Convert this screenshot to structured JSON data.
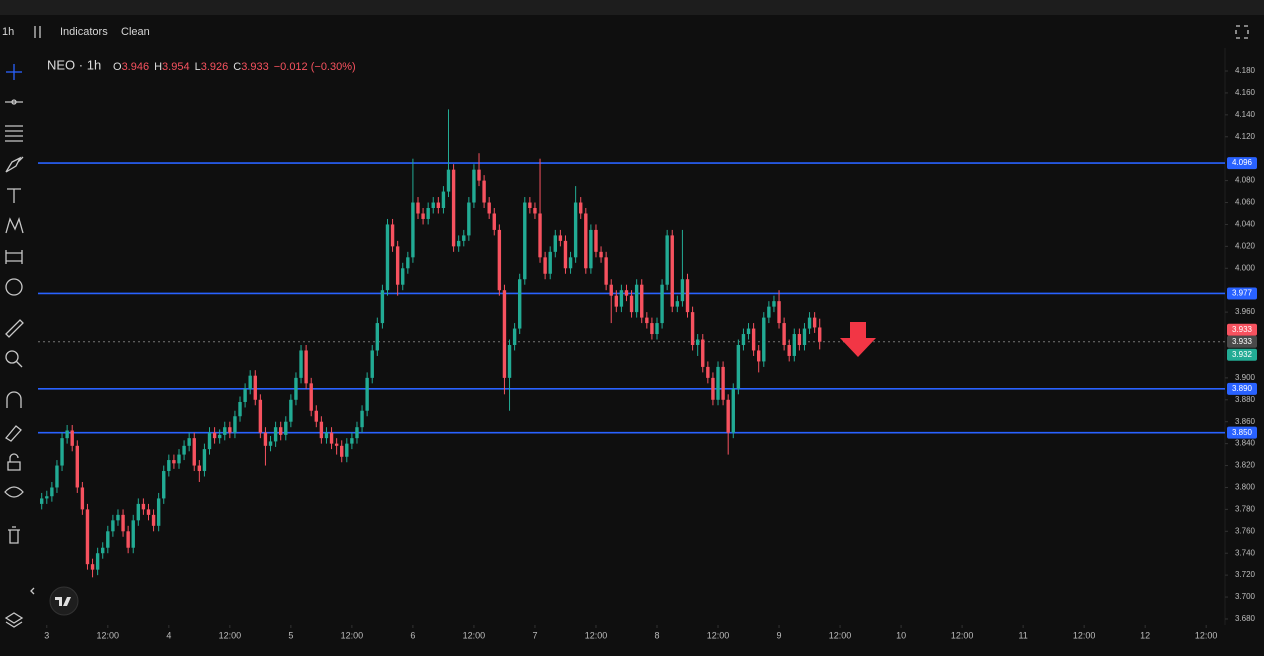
{
  "toolbar": {
    "interval": "1h",
    "indicators": "Indicators",
    "clean": "Clean"
  },
  "chart_data": {
    "type": "candlestick",
    "symbol": "NEO · 1h",
    "ohlc_legend": {
      "open_label": "O",
      "open": "3.946",
      "high_label": "H",
      "high": "3.954",
      "low_label": "L",
      "low": "3.926",
      "close_label": "C",
      "close": "3.933",
      "change": "−0.012 (−0.30%)"
    },
    "x": [
      -1,
      0,
      1,
      2,
      3,
      4,
      5,
      6,
      7,
      8,
      9,
      10,
      11,
      12,
      13,
      14,
      15,
      16,
      17,
      18,
      19,
      20,
      21,
      22,
      23,
      24,
      25,
      26,
      27,
      28,
      29,
      30,
      31,
      32,
      33,
      34,
      35,
      36,
      37,
      38,
      39,
      40,
      41,
      42,
      43,
      44,
      45,
      46,
      47,
      48,
      49,
      50,
      51,
      52,
      53,
      54,
      55,
      56,
      57,
      58,
      59,
      60,
      61,
      62,
      63,
      64,
      65,
      66,
      67,
      68,
      69,
      70,
      71,
      72,
      73,
      74,
      75,
      76,
      77,
      78,
      79,
      80,
      81,
      82,
      83,
      84,
      85,
      86,
      87,
      88,
      89,
      90,
      91,
      92,
      93,
      94,
      95,
      96,
      97,
      98,
      99,
      100,
      101,
      102,
      103,
      104,
      105,
      106,
      107,
      108,
      109,
      110,
      111,
      112,
      113,
      114,
      115,
      116,
      117,
      118,
      119,
      120,
      121,
      122,
      123,
      124,
      125,
      126,
      127,
      128,
      129,
      130,
      131,
      132,
      133,
      134,
      135,
      136,
      137,
      138,
      139,
      140,
      141,
      142,
      143,
      144,
      145,
      146,
      147,
      148,
      149,
      150,
      151,
      152
    ],
    "open": [
      3.785,
      3.79,
      3.792,
      3.8,
      3.82,
      3.845,
      3.852,
      3.838,
      3.8,
      3.78,
      3.73,
      3.725,
      3.74,
      3.745,
      3.76,
      3.77,
      3.775,
      3.76,
      3.745,
      3.77,
      3.785,
      3.78,
      3.775,
      3.765,
      3.79,
      3.815,
      3.825,
      3.822,
      3.83,
      3.838,
      3.845,
      3.82,
      3.815,
      3.835,
      3.85,
      3.845,
      3.848,
      3.855,
      3.85,
      3.865,
      3.878,
      3.89,
      3.902,
      3.88,
      3.85,
      3.838,
      3.842,
      3.855,
      3.848,
      3.86,
      3.88,
      3.9,
      3.925,
      3.895,
      3.87,
      3.86,
      3.845,
      3.85,
      3.84,
      3.838,
      3.828,
      3.84,
      3.845,
      3.855,
      3.87,
      3.9,
      3.925,
      3.95,
      3.98,
      4.04,
      4.02,
      3.985,
      4.0,
      4.01,
      4.06,
      4.05,
      4.045,
      4.055,
      4.06,
      4.055,
      4.07,
      4.09,
      4.02,
      4.025,
      4.03,
      4.06,
      4.09,
      4.08,
      4.06,
      4.05,
      4.035,
      3.98,
      3.9,
      3.93,
      3.945,
      3.99,
      4.06,
      4.055,
      4.05,
      4.01,
      3.995,
      4.015,
      4.03,
      4.025,
      4.0,
      4.01,
      4.06,
      4.05,
      4.0,
      4.035,
      4.015,
      4.01,
      3.985,
      3.975,
      3.965,
      3.98,
      3.975,
      3.96,
      3.985,
      3.955,
      3.95,
      3.94,
      3.95,
      3.985,
      4.03,
      3.965,
      3.97,
      3.99,
      3.96,
      3.93,
      3.935,
      3.91,
      3.9,
      3.88,
      3.91,
      3.88,
      3.85,
      3.89,
      3.93,
      3.94,
      3.945,
      3.925,
      3.915,
      3.955,
      3.965,
      3.97,
      3.95,
      3.93,
      3.92,
      3.94,
      3.93,
      3.945,
      3.955,
      3.946
    ],
    "high": [
      3.795,
      3.797,
      3.805,
      3.825,
      3.85,
      3.857,
      3.857,
      3.843,
      3.805,
      3.785,
      3.735,
      3.745,
      3.75,
      3.765,
      3.775,
      3.78,
      3.78,
      3.765,
      3.775,
      3.79,
      3.79,
      3.785,
      3.78,
      3.795,
      3.82,
      3.83,
      3.83,
      3.835,
      3.843,
      3.85,
      3.85,
      3.825,
      3.84,
      3.855,
      3.855,
      3.853,
      3.86,
      3.86,
      3.87,
      3.883,
      3.895,
      3.907,
      3.907,
      3.885,
      3.855,
      3.847,
      3.86,
      3.86,
      3.865,
      3.885,
      3.905,
      3.93,
      3.93,
      3.9,
      3.875,
      3.865,
      3.855,
      3.855,
      3.845,
      3.843,
      3.845,
      3.85,
      3.86,
      3.875,
      3.905,
      3.93,
      3.955,
      3.985,
      4.045,
      4.045,
      4.025,
      4.005,
      4.015,
      4.1,
      4.065,
      4.055,
      4.06,
      4.065,
      4.065,
      4.075,
      4.145,
      4.095,
      4.03,
      4.035,
      4.065,
      4.095,
      4.105,
      4.085,
      4.065,
      4.055,
      4.04,
      3.985,
      3.935,
      3.95,
      3.995,
      4.065,
      4.065,
      4.06,
      4.1,
      4.015,
      4.02,
      4.035,
      4.035,
      4.03,
      4.015,
      4.075,
      4.065,
      4.055,
      4.04,
      4.04,
      4.02,
      4.015,
      3.99,
      3.98,
      3.985,
      3.985,
      3.98,
      3.99,
      3.99,
      3.96,
      3.955,
      3.955,
      3.99,
      4.035,
      4.035,
      3.975,
      4.035,
      3.995,
      3.965,
      3.94,
      3.94,
      3.915,
      3.905,
      3.915,
      3.915,
      3.885,
      3.895,
      3.935,
      3.945,
      3.95,
      3.95,
      3.93,
      3.96,
      3.97,
      3.975,
      3.98,
      3.955,
      3.935,
      3.945,
      3.945,
      3.95,
      3.96,
      3.96,
      3.954
    ],
    "low": [
      3.78,
      3.785,
      3.787,
      3.795,
      3.815,
      3.84,
      3.833,
      3.795,
      3.775,
      3.725,
      3.718,
      3.72,
      3.735,
      3.74,
      3.755,
      3.765,
      3.755,
      3.74,
      3.74,
      3.765,
      3.775,
      3.77,
      3.76,
      3.76,
      3.785,
      3.81,
      3.817,
      3.817,
      3.825,
      3.833,
      3.815,
      3.805,
      3.81,
      3.83,
      3.84,
      3.84,
      3.843,
      3.845,
      3.845,
      3.86,
      3.873,
      3.885,
      3.875,
      3.845,
      3.82,
      3.833,
      3.837,
      3.843,
      3.843,
      3.855,
      3.875,
      3.895,
      3.89,
      3.865,
      3.855,
      3.84,
      3.84,
      3.835,
      3.83,
      3.823,
      3.823,
      3.835,
      3.84,
      3.85,
      3.865,
      3.895,
      3.92,
      3.945,
      3.975,
      4.015,
      3.975,
      3.98,
      3.995,
      4.005,
      4.045,
      4.04,
      4.04,
      4.05,
      4.05,
      4.05,
      4.065,
      4.015,
      4.015,
      4.02,
      4.025,
      4.055,
      4.075,
      4.055,
      4.045,
      4.03,
      3.975,
      3.885,
      3.87,
      3.925,
      3.94,
      3.985,
      4.05,
      4.045,
      4.005,
      3.99,
      3.99,
      4.01,
      4.02,
      3.995,
      3.995,
      4.005,
      4.045,
      3.995,
      3.995,
      4.01,
      4.005,
      3.98,
      3.95,
      3.96,
      3.96,
      3.97,
      3.955,
      3.955,
      3.95,
      3.945,
      3.935,
      3.935,
      3.945,
      3.98,
      3.96,
      3.96,
      3.965,
      3.955,
      3.925,
      3.92,
      3.905,
      3.895,
      3.875,
      3.875,
      3.875,
      3.83,
      3.845,
      3.885,
      3.925,
      3.935,
      3.92,
      3.905,
      3.91,
      3.95,
      3.96,
      3.945,
      3.925,
      3.915,
      3.915,
      3.925,
      3.925,
      3.94,
      3.941,
      3.926
    ],
    "close": [
      3.79,
      3.792,
      3.8,
      3.82,
      3.845,
      3.852,
      3.838,
      3.8,
      3.78,
      3.73,
      3.725,
      3.74,
      3.745,
      3.76,
      3.77,
      3.775,
      3.76,
      3.745,
      3.77,
      3.785,
      3.78,
      3.775,
      3.765,
      3.79,
      3.815,
      3.825,
      3.822,
      3.83,
      3.838,
      3.845,
      3.82,
      3.815,
      3.835,
      3.85,
      3.845,
      3.848,
      3.855,
      3.85,
      3.865,
      3.878,
      3.89,
      3.902,
      3.88,
      3.85,
      3.838,
      3.842,
      3.855,
      3.848,
      3.86,
      3.88,
      3.9,
      3.925,
      3.895,
      3.87,
      3.86,
      3.845,
      3.85,
      3.84,
      3.838,
      3.828,
      3.84,
      3.845,
      3.855,
      3.87,
      3.9,
      3.925,
      3.95,
      3.98,
      4.04,
      4.02,
      3.985,
      4.0,
      4.01,
      4.06,
      4.05,
      4.045,
      4.055,
      4.06,
      4.055,
      4.07,
      4.09,
      4.02,
      4.025,
      4.03,
      4.06,
      4.09,
      4.08,
      4.06,
      4.05,
      4.035,
      3.98,
      3.9,
      3.93,
      3.945,
      3.99,
      4.06,
      4.055,
      4.05,
      4.01,
      3.995,
      4.015,
      4.03,
      4.025,
      4.0,
      4.01,
      4.06,
      4.05,
      4.0,
      4.035,
      4.015,
      4.01,
      3.985,
      3.975,
      3.965,
      3.98,
      3.975,
      3.96,
      3.985,
      3.955,
      3.95,
      3.94,
      3.95,
      3.985,
      4.03,
      3.965,
      3.97,
      3.99,
      3.96,
      3.93,
      3.935,
      3.91,
      3.9,
      3.88,
      3.91,
      3.88,
      3.85,
      3.89,
      3.93,
      3.94,
      3.945,
      3.925,
      3.915,
      3.955,
      3.965,
      3.97,
      3.95,
      3.93,
      3.92,
      3.94,
      3.93,
      3.945,
      3.955,
      3.946,
      3.933
    ],
    "up_color": "#22ab94",
    "down_color": "#f7525f",
    "xlim": [
      -9.2,
      231.7
    ],
    "ylim": [
      3.6745,
      4.201
    ],
    "xticks": [
      {
        "value": 0,
        "label": "3"
      },
      {
        "value": 12,
        "label": "12:00"
      },
      {
        "value": 24,
        "label": "4"
      },
      {
        "value": 36,
        "label": "12:00"
      },
      {
        "value": 48,
        "label": "5"
      },
      {
        "value": 60,
        "label": "12:00"
      },
      {
        "value": 72,
        "label": "6"
      },
      {
        "value": 84,
        "label": "12:00"
      },
      {
        "value": 96,
        "label": "7"
      },
      {
        "value": 108,
        "label": "12:00"
      },
      {
        "value": 120,
        "label": "8"
      },
      {
        "value": 132,
        "label": "12:00"
      },
      {
        "value": 144,
        "label": "9"
      },
      {
        "value": 156,
        "label": "12:00"
      },
      {
        "value": 168,
        "label": "10"
      },
      {
        "value": 180,
        "label": "12:00"
      },
      {
        "value": 192,
        "label": "11"
      },
      {
        "value": 204,
        "label": "12:00"
      },
      {
        "value": 216,
        "label": "12"
      },
      {
        "value": 228,
        "label": "12:00"
      }
    ],
    "yticks": [
      {
        "value": 4.18,
        "label": "4.180"
      },
      {
        "value": 4.16,
        "label": "4.160"
      },
      {
        "value": 4.14,
        "label": "4.140"
      },
      {
        "value": 4.12,
        "label": "4.120"
      },
      {
        "value": 4.08,
        "label": "4.080"
      },
      {
        "value": 4.06,
        "label": "4.060"
      },
      {
        "value": 4.04,
        "label": "4.040"
      },
      {
        "value": 4.02,
        "label": "4.020"
      },
      {
        "value": 4.0,
        "label": "4.000"
      },
      {
        "value": 3.96,
        "label": "3.960"
      },
      {
        "value": 3.9,
        "label": "3.900"
      },
      {
        "value": 3.88,
        "label": "3.880"
      },
      {
        "value": 3.86,
        "label": "3.860"
      },
      {
        "value": 3.84,
        "label": "3.840"
      },
      {
        "value": 3.82,
        "label": "3.820"
      },
      {
        "value": 3.8,
        "label": "3.800"
      },
      {
        "value": 3.78,
        "label": "3.780"
      },
      {
        "value": 3.76,
        "label": "3.760"
      },
      {
        "value": 3.74,
        "label": "3.740"
      },
      {
        "value": 3.72,
        "label": "3.720"
      },
      {
        "value": 3.7,
        "label": "3.700"
      },
      {
        "value": 3.68,
        "label": "3.680"
      }
    ],
    "levels": [
      {
        "value": 4.096,
        "label": "4.096"
      },
      {
        "value": 3.977,
        "label": "3.977"
      },
      {
        "value": 3.89,
        "label": "3.890"
      },
      {
        "value": 3.85,
        "label": "3.850"
      }
    ],
    "level_color": "#2962ff",
    "price_labels": [
      {
        "value": 3.933,
        "label": "3.933",
        "color": "#f7525f"
      },
      {
        "value": 3.933,
        "label": "3.933",
        "color": "#4a4a4a"
      },
      {
        "value": 3.932,
        "label": "3.932",
        "color": "#22ab94"
      }
    ]
  }
}
